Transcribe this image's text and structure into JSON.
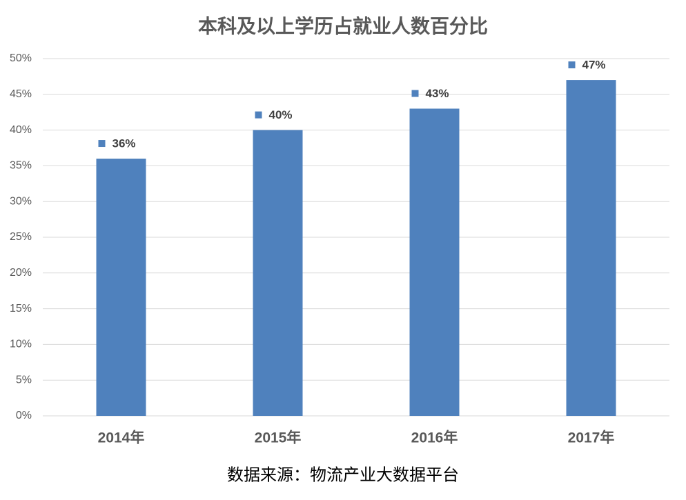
{
  "chart_data": {
    "type": "bar",
    "title": "本科及以上学历占就业人数百分比",
    "categories": [
      "2014年",
      "2015年",
      "2016年",
      "2017年"
    ],
    "values": [
      36,
      40,
      43,
      47
    ],
    "value_labels": [
      "36%",
      "40%",
      "43%",
      "47%"
    ],
    "color": "#4f81bd",
    "ylim": [
      0,
      50
    ],
    "yticks": [
      {
        "value": 0,
        "label": "0%"
      },
      {
        "value": 5,
        "label": "5%"
      },
      {
        "value": 10,
        "label": "10%"
      },
      {
        "value": 15,
        "label": "15%"
      },
      {
        "value": 20,
        "label": "20%"
      },
      {
        "value": 25,
        "label": "25%"
      },
      {
        "value": 30,
        "label": "30%"
      },
      {
        "value": 35,
        "label": "35%"
      },
      {
        "value": 40,
        "label": "40%"
      },
      {
        "value": 45,
        "label": "45%"
      },
      {
        "value": 50,
        "label": "50%"
      }
    ],
    "grid": true,
    "source": "数据来源：物流产业大数据平台"
  }
}
